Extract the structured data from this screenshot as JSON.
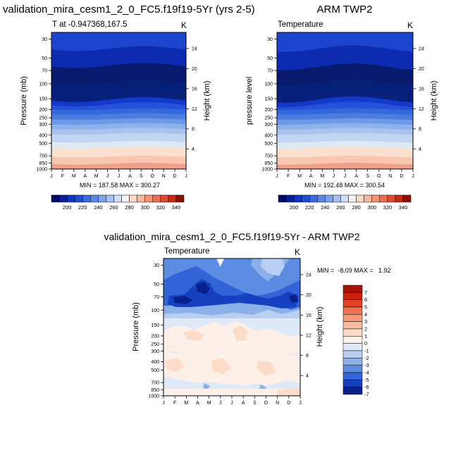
{
  "chart_data": [
    {
      "type": "contour",
      "title": "validation_mira_cesm1_2_0_FC5.f19f19-5Yr (yrs 2-5)",
      "subtitle_left": "T at -0.947368,167.5",
      "units": "K",
      "ylabel": "Pressure (mb)",
      "ylabel_right": "Height (km)",
      "x_ticks": [
        "J",
        "F",
        "M",
        "A",
        "M",
        "J",
        "J",
        "A",
        "S",
        "O",
        "N",
        "D",
        "J"
      ],
      "y_ticks": [
        "30",
        "50",
        "70",
        "100",
        "150",
        "200",
        "250",
        "300",
        "400",
        "500",
        "700",
        "850",
        "1000"
      ],
      "height_ticks": [
        "24",
        "20",
        "16",
        "12",
        "8",
        "4"
      ],
      "minmax": "MIN = 187.58 MAX = 300.27",
      "colorbar_labels": [
        "200",
        "220",
        "240",
        "260",
        "280",
        "300",
        "320",
        "340"
      ],
      "bands": [
        {
          "from": 1000,
          "to": 850,
          "color": "#f0a08a"
        },
        {
          "from": 850,
          "to": 700,
          "color": "#f8c7b0"
        },
        {
          "from": 700,
          "to": 550,
          "color": "#fbe0d0"
        },
        {
          "from": 550,
          "to": 470,
          "color": "#dfe9f6"
        },
        {
          "from": 470,
          "to": 380,
          "color": "#c2d6f2"
        },
        {
          "from": 380,
          "to": 330,
          "color": "#a7c3ee"
        },
        {
          "from": 330,
          "to": 290,
          "color": "#8db1ea"
        },
        {
          "from": 290,
          "to": 255,
          "color": "#6e97e5"
        },
        {
          "from": 255,
          "to": 222,
          "color": "#4a7de0"
        },
        {
          "from": 222,
          "to": 195,
          "color": "#3767dc"
        },
        {
          "from": 195,
          "to": 170,
          "color": "#2452d8"
        },
        {
          "from": 170,
          "to": 150,
          "color": "#1438c8"
        },
        {
          "from": 150,
          "to": 95,
          "color": "#07207a"
        },
        {
          "from": 95,
          "to": 60,
          "color": "#081a6e"
        },
        {
          "from": 60,
          "to": 38,
          "color": "#0c2bb0"
        },
        {
          "from": 38,
          "to": 25,
          "color": "#1c44cc"
        }
      ]
    },
    {
      "type": "contour",
      "title": "ARM TWP2",
      "subtitle_left": "Temperature",
      "units": "K",
      "ylabel": "pressure level",
      "ylabel_right": "Height (km)",
      "x_ticks": [
        "J",
        "F",
        "M",
        "A",
        "M",
        "J",
        "J",
        "A",
        "S",
        "O",
        "N",
        "D",
        "J"
      ],
      "y_ticks": [
        "30",
        "50",
        "70",
        "100",
        "150",
        "200",
        "250",
        "300",
        "400",
        "500",
        "700",
        "850",
        "1000"
      ],
      "height_ticks": [
        "24",
        "20",
        "16",
        "12",
        "8",
        "4"
      ],
      "minmax": "MIN = 192.48 MAX = 300.54",
      "colorbar_labels": [
        "200",
        "220",
        "240",
        "260",
        "280",
        "300",
        "320",
        "340"
      ],
      "bands": [
        {
          "from": 1000,
          "to": 850,
          "color": "#f0a08a"
        },
        {
          "from": 850,
          "to": 700,
          "color": "#f8c7b0"
        },
        {
          "from": 700,
          "to": 550,
          "color": "#fbe0d0"
        },
        {
          "from": 550,
          "to": 470,
          "color": "#dfe9f6"
        },
        {
          "from": 470,
          "to": 380,
          "color": "#c2d6f2"
        },
        {
          "from": 380,
          "to": 330,
          "color": "#a7c3ee"
        },
        {
          "from": 330,
          "to": 290,
          "color": "#8db1ea"
        },
        {
          "from": 290,
          "to": 255,
          "color": "#6e97e5"
        },
        {
          "from": 255,
          "to": 222,
          "color": "#4a7de0"
        },
        {
          "from": 222,
          "to": 195,
          "color": "#3767dc"
        },
        {
          "from": 195,
          "to": 170,
          "color": "#2452d8"
        },
        {
          "from": 170,
          "to": 150,
          "color": "#1438c8"
        },
        {
          "from": 150,
          "to": 95,
          "color": "#07207a"
        },
        {
          "from": 95,
          "to": 62,
          "color": "#081a6e"
        },
        {
          "from": 62,
          "to": 38,
          "color": "#0c2bb0"
        },
        {
          "from": 38,
          "to": 25,
          "color": "#1c44cc"
        }
      ]
    },
    {
      "type": "contour",
      "title": "validation_mira_cesm1_2_0_FC5.f19f19-5Yr - ARM TWP2",
      "subtitle_left": "Temperature",
      "units": "K",
      "ylabel": "Pressure (mb)",
      "ylabel_right": "Height (km)",
      "x_ticks": [
        "J",
        "F",
        "M",
        "A",
        "M",
        "J",
        "J",
        "A",
        "S",
        "O",
        "N",
        "D",
        "J"
      ],
      "y_ticks": [
        "30",
        "50",
        "70",
        "100",
        "150",
        "200",
        "250",
        "300",
        "400",
        "500",
        "700",
        "850",
        "1000"
      ],
      "height_ticks": [
        "24",
        "20",
        "16",
        "12",
        "8",
        "4"
      ],
      "minmax": "MIN =  -8.09 MAX =   1.92",
      "colorbar_labels": [
        "7",
        "6",
        "5",
        "4",
        "3",
        "2",
        "1",
        "0",
        "-1",
        "-2",
        "-3",
        "-4",
        "-5",
        "-6",
        "-7"
      ]
    }
  ],
  "colors": {
    "sequential": [
      "#000a6e",
      "#0a1ea0",
      "#1234c8",
      "#1e4ed8",
      "#3a6ae0",
      "#5a86e6",
      "#7ea2ec",
      "#a6c0f2",
      "#cfddf6",
      "#f4f4f4",
      "#fbd9c7",
      "#f8b79c",
      "#f39374",
      "#ec6e50",
      "#e04a32",
      "#c82814",
      "#8c0f06"
    ],
    "diverging": [
      "#a8120a",
      "#c8220e",
      "#e04426",
      "#f07050",
      "#f69878",
      "#f9bca0",
      "#fcdcc8",
      "#fdf0e8",
      "#dde9f8",
      "#b8cff2",
      "#8cb0ea",
      "#5c8ce2",
      "#3264d8",
      "#1540c0",
      "#06208c"
    ]
  }
}
